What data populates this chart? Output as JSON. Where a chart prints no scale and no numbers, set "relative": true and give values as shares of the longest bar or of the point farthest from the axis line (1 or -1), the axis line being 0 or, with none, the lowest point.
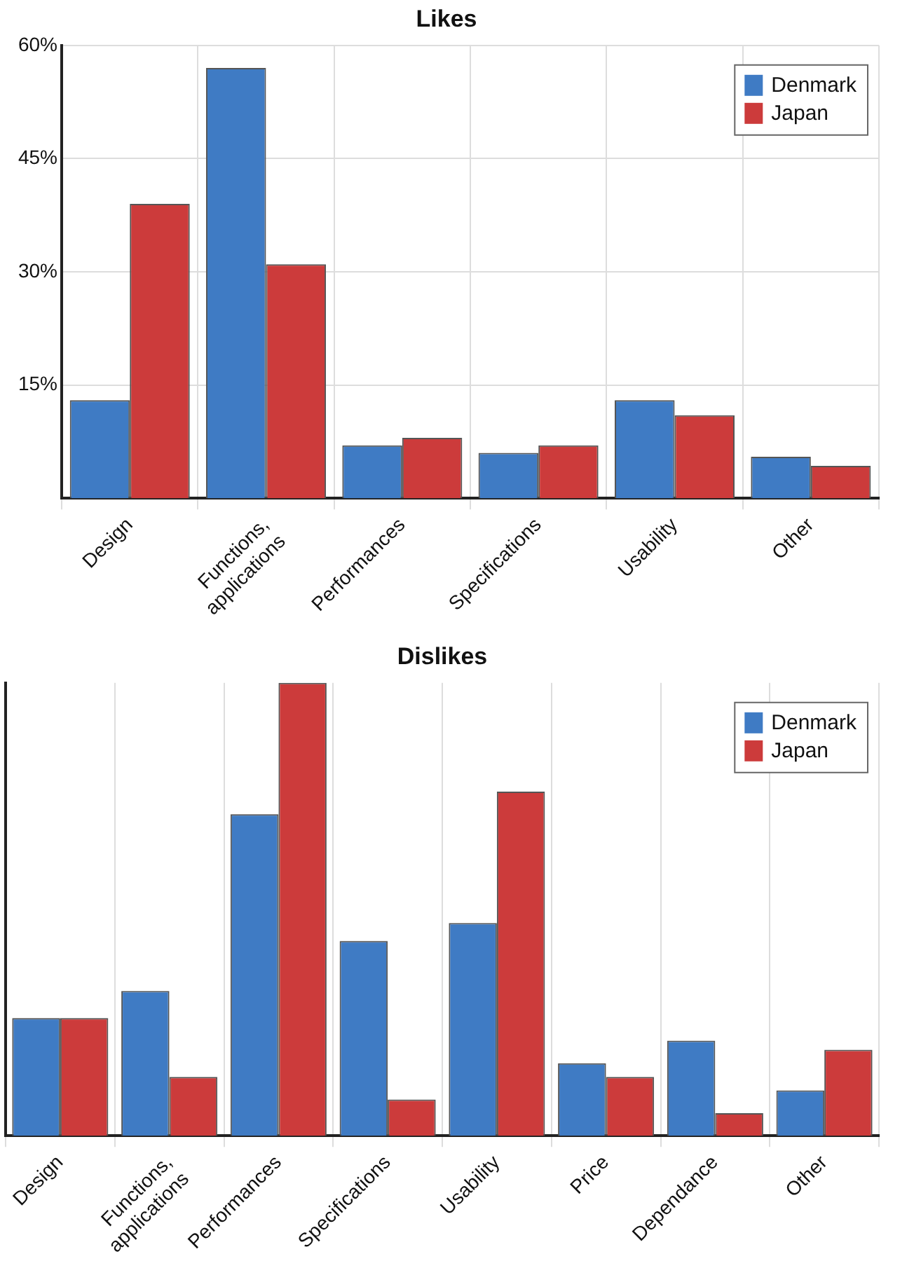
{
  "chart_data": [
    {
      "type": "bar",
      "title": "Likes",
      "categories": [
        "Design",
        "Functions,\napplications",
        "Performances",
        "Specifications",
        "Usability",
        "Other"
      ],
      "series": [
        {
          "name": "Denmark",
          "color": "#3f7bc4",
          "values": [
            13,
            57,
            7,
            6,
            13,
            5.5
          ]
        },
        {
          "name": "Japan",
          "color": "#cc3b3b",
          "values": [
            39,
            31,
            8,
            7,
            11,
            4.3
          ]
        }
      ],
      "ylim": [
        0,
        60
      ],
      "yticks": [
        {
          "value": 15,
          "label": "15%"
        },
        {
          "value": 30,
          "label": "30%"
        },
        {
          "value": 45,
          "label": "45%"
        },
        {
          "value": 60,
          "label": "60%"
        }
      ],
      "grid": true,
      "legend": "top right"
    },
    {
      "type": "bar",
      "title": "Dislikes",
      "relative": true,
      "categories": [
        "Design",
        "Functions,\napplications",
        "Performances",
        "Specifications",
        "Usability",
        "Price",
        "Dependance",
        "Other"
      ],
      "series": [
        {
          "name": "Denmark",
          "color": "#3f7bc4",
          "values": [
            0.26,
            0.32,
            0.71,
            0.43,
            0.47,
            0.16,
            0.21,
            0.1
          ]
        },
        {
          "name": "Japan",
          "color": "#cc3b3b",
          "values": [
            0.26,
            0.13,
            1,
            0.08,
            0.76,
            0.13,
            0.05,
            0.19
          ]
        }
      ],
      "grid": true,
      "legend": "top right"
    }
  ]
}
